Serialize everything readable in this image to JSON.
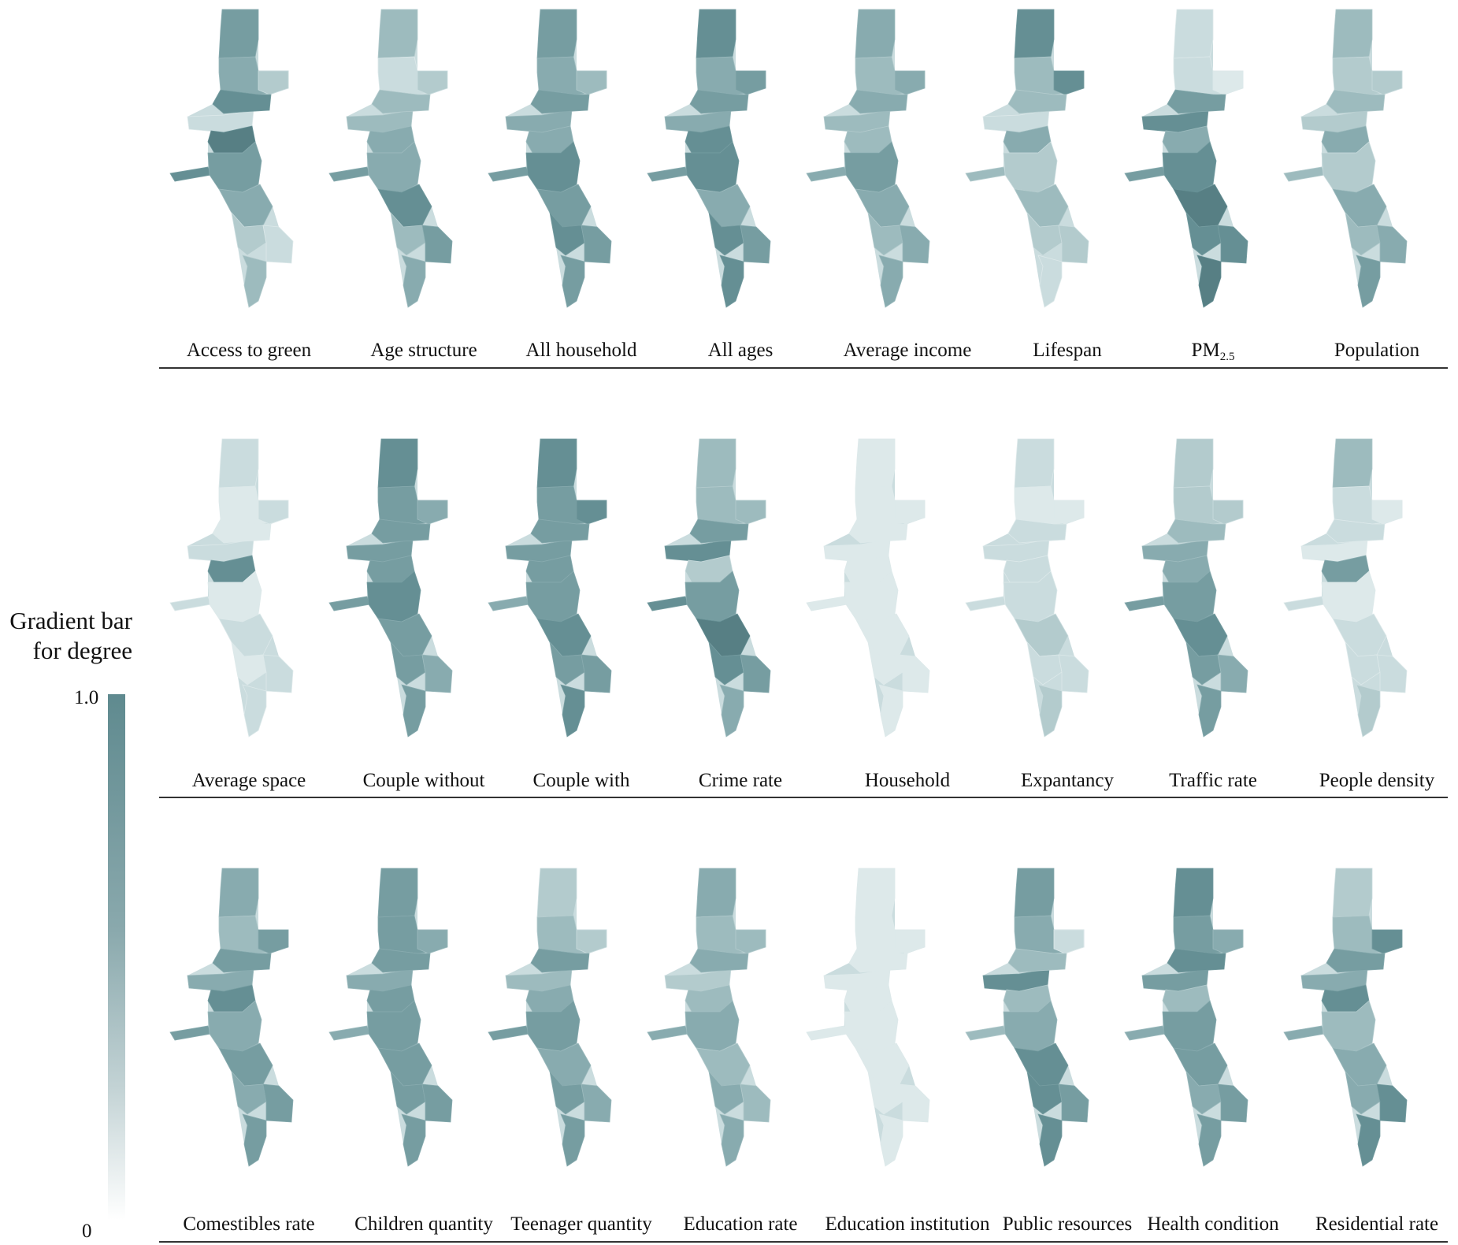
{
  "legend": {
    "title_line1": "Gradient bar",
    "title_line2": "for degree",
    "max_label": "1.0",
    "min_label": "0",
    "gradient_colors": [
      "#5f8a8f",
      "#8aa9ad",
      "#c3d3d5",
      "#ffffff"
    ]
  },
  "palette": {
    "0": "#dde9ea",
    "1": "#cadcde",
    "2": "#b3cbcd",
    "3": "#9dbbbe",
    "4": "#88abaf",
    "5": "#769da1",
    "6": "#658f94",
    "7": "#577f84"
  },
  "rows": [
    {
      "panels": [
        {
          "label": "Access to green",
          "levels": [
            5,
            4,
            2,
            1,
            6,
            7,
            6,
            5,
            4,
            2,
            1,
            3
          ]
        },
        {
          "label": "Age structure",
          "levels": [
            3,
            1,
            2,
            3,
            3,
            4,
            5,
            4,
            6,
            3,
            5,
            4
          ]
        },
        {
          "label": "All household",
          "levels": [
            5,
            4,
            3,
            4,
            5,
            4,
            5,
            6,
            5,
            6,
            5,
            5
          ]
        },
        {
          "label": "All ages",
          "levels": [
            6,
            4,
            5,
            4,
            5,
            6,
            5,
            6,
            4,
            6,
            5,
            6
          ]
        },
        {
          "label": "Average income",
          "levels": [
            4,
            3,
            4,
            3,
            4,
            3,
            4,
            5,
            4,
            3,
            4,
            4
          ]
        },
        {
          "label": "Lifespan",
          "levels": [
            6,
            3,
            6,
            1,
            3,
            4,
            3,
            2,
            3,
            2,
            2,
            1
          ]
        },
        {
          "label": "PM",
          "subscript": "2.5",
          "levels": [
            1,
            1,
            0,
            6,
            5,
            4,
            5,
            6,
            7,
            6,
            6,
            7
          ]
        },
        {
          "label": "Population",
          "levels": [
            3,
            2,
            2,
            2,
            3,
            4,
            3,
            2,
            4,
            3,
            4,
            5
          ]
        }
      ]
    },
    {
      "panels": [
        {
          "label": "Average space",
          "levels": [
            1,
            0,
            1,
            1,
            0,
            6,
            1,
            0,
            1,
            0,
            1,
            1
          ]
        },
        {
          "label": "Couple without",
          "levels": [
            6,
            5,
            4,
            5,
            5,
            5,
            5,
            6,
            5,
            5,
            4,
            5
          ]
        },
        {
          "label": "Couple with",
          "levels": [
            6,
            5,
            6,
            5,
            5,
            5,
            4,
            5,
            6,
            5,
            5,
            6
          ]
        },
        {
          "label": "Crime rate",
          "levels": [
            3,
            3,
            3,
            6,
            5,
            2,
            6,
            5,
            7,
            6,
            5,
            4
          ]
        },
        {
          "label": "Household",
          "levels": [
            0,
            0,
            0,
            0,
            0,
            0,
            0,
            0,
            0,
            0,
            0,
            0
          ]
        },
        {
          "label": "Expantancy",
          "levels": [
            1,
            0,
            0,
            1,
            1,
            1,
            1,
            1,
            2,
            1,
            1,
            2
          ]
        },
        {
          "label": "Traffic rate",
          "levels": [
            2,
            2,
            2,
            4,
            3,
            4,
            5,
            5,
            6,
            5,
            4,
            5
          ]
        },
        {
          "label": "People density",
          "levels": [
            3,
            1,
            0,
            0,
            1,
            5,
            1,
            0,
            1,
            1,
            1,
            2
          ]
        }
      ]
    },
    {
      "panels": [
        {
          "label": "Comestibles rate",
          "levels": [
            4,
            3,
            5,
            4,
            5,
            6,
            5,
            4,
            5,
            4,
            5,
            5
          ]
        },
        {
          "label": "Children quantity",
          "levels": [
            5,
            5,
            4,
            4,
            5,
            5,
            4,
            5,
            5,
            5,
            5,
            5
          ]
        },
        {
          "label": "Teenager quantity",
          "levels": [
            2,
            3,
            2,
            3,
            5,
            4,
            5,
            5,
            4,
            5,
            4,
            5
          ]
        },
        {
          "label": "Education rate",
          "levels": [
            4,
            3,
            3,
            2,
            4,
            3,
            4,
            4,
            3,
            4,
            3,
            4
          ]
        },
        {
          "label": "Education institution",
          "levels": [
            0,
            0,
            0,
            0,
            0,
            0,
            0,
            0,
            0,
            0,
            0,
            0
          ]
        },
        {
          "label": "Public resources",
          "levels": [
            5,
            4,
            1,
            6,
            3,
            3,
            3,
            4,
            6,
            6,
            5,
            6
          ]
        },
        {
          "label": "Health condition",
          "levels": [
            6,
            5,
            4,
            5,
            6,
            3,
            4,
            5,
            5,
            4,
            5,
            5
          ]
        },
        {
          "label": "Residential rate",
          "levels": [
            2,
            3,
            6,
            4,
            5,
            6,
            4,
            3,
            4,
            4,
            6,
            6
          ]
        }
      ]
    }
  ]
}
